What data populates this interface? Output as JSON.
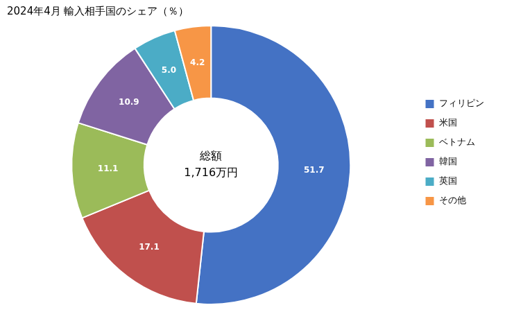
{
  "chart_data": {
    "type": "doughnut",
    "title": "2024年4月 輸入相手国のシェア（％）",
    "categories": [
      "フィリピン",
      "米国",
      "ベトナム",
      "韓国",
      "英国",
      "その他"
    ],
    "values": [
      51.7,
      17.1,
      11.1,
      10.9,
      5.0,
      4.2
    ],
    "value_labels": [
      "51.7",
      "17.1",
      "11.1",
      "10.9",
      "5.0",
      "4.2"
    ],
    "colors": [
      "#4472C4",
      "#C0504D",
      "#9BBB59",
      "#8064A2",
      "#4BACC6",
      "#F79646"
    ],
    "annotations": [
      "総額",
      "1,716万円"
    ],
    "data_labels": true,
    "legend": "right"
  }
}
